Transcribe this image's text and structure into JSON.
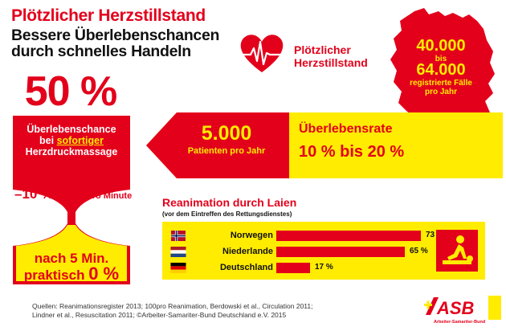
{
  "header": {
    "title": "Plötzlicher Herzstillstand",
    "subtitle_line1": "Bessere Überlebenschancen",
    "subtitle_line2": "durch schnelles Handeln"
  },
  "heart_label": {
    "line1": "Plötzlicher",
    "line2": "Herzstillstand"
  },
  "germany": {
    "from": "40.000",
    "connector": "bis",
    "to": "64.000",
    "label_line1": "registrierte Fälle",
    "label_line2": "pro Jahr"
  },
  "hourglass": {
    "top_value": "50 %",
    "survival_line1": "Überlebenschance",
    "survival_pre": "bei ",
    "survival_highlight": "sofortiger",
    "survival_line3": "Herzdruckmassage",
    "decline_value": "–10 %",
    "decline_unit": "pro Minute",
    "bottom_line1": "nach 5 Min.",
    "bottom_line2_text": "praktisch ",
    "bottom_line2_value": "0 %"
  },
  "arrow": {
    "patients_value": "5.000",
    "patients_label": "Patienten pro Jahr",
    "rate_label": "Überlebensrate",
    "rate_value": "10 % bis 20 %"
  },
  "reanimation": {
    "heading": "Reanimation durch Laien",
    "subheading": "(vor dem Eintreffen des Rettungsdienstes)",
    "rows": [
      {
        "country": "Norwegen",
        "value": 73,
        "label": "73 %"
      },
      {
        "country": "Niederlande",
        "value": 65,
        "label": "65 %"
      },
      {
        "country": "Deutschland",
        "value": 17,
        "label": "17 %"
      }
    ]
  },
  "sources": {
    "line1": "Quellen: Reanimationsregister 2013; 100pro Reanimation, Berdowski et al., Circulation 2011;",
    "line2": "Lindner et al., Resuscitation 2011; ©Arbeiter-Samariter-Bund Deutschland e.V. 2015"
  },
  "logo": {
    "mark": "ASB",
    "tagline": "Arbeiter-Samariter-Bund"
  },
  "colors": {
    "red": "#e3001b",
    "yellow": "#ffec00",
    "dark": "#111111"
  },
  "icons": [
    "heart-ecg-icon",
    "germany-map",
    "cpr-icon",
    "flag-norway-icon",
    "flag-netherlands-icon",
    "flag-germany-icon"
  ]
}
